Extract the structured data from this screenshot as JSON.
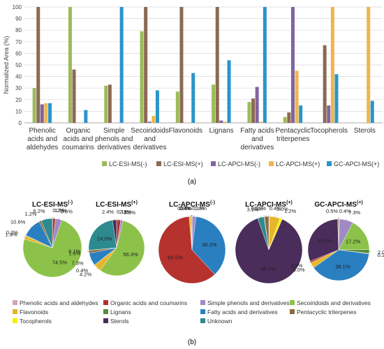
{
  "colors": {
    "LC-ESI-MS(-)": "#9bbb59",
    "LC-ESI-MS(+)": "#8b6a52",
    "LC-APCI-MS(-)": "#8064a2",
    "LC-APCI-MS(+)": "#f0b64b",
    "GC-APCI-MS(+)": "#2a95c9",
    "Phenolic acids and aldehydes": "#d7a3b4",
    "Organic acids and coumarins": "#b5322e",
    "Simple phenols and derivatives": "#a08ac5",
    "Secoiridoids and derivatives": "#8cc249",
    "Flavonoids": "#e6b62a",
    "Lignans": "#5a8b3b",
    "Fatty acids and derivatives": "#2a7fc1",
    "Pentacyclic triterpenes": "#8c6b3c",
    "Tocopherols": "#f4f000",
    "Sterols": "#4a2d5a",
    "Unknown": "#2d8a8e"
  },
  "chart_data": [
    {
      "type": "bar",
      "panel_label": "(a)",
      "ylabel": "Normalized Area (%)",
      "ylim": [
        0,
        100
      ],
      "yticks": [
        0,
        10,
        20,
        30,
        40,
        50,
        60,
        70,
        80,
        90,
        100
      ],
      "grid": true,
      "legend_position": "bottom",
      "categories": [
        "Phenolic acids and aldehydes",
        "Organic acids and coumarins",
        "Simple phenols and derivatives",
        "Secoiridoids and derivatives",
        "Flavonoids",
        "Lignans",
        "Fatty acids and derivatives",
        "Pentacyclic triterpenes",
        "Tocopherols",
        "Sterols"
      ],
      "category_labels": [
        [
          "Phenolic",
          "acids and",
          "aldehydes"
        ],
        [
          "Organic",
          "acids and",
          "coumarins"
        ],
        [
          "Simple",
          "phenols and",
          "derivatives"
        ],
        [
          "Secoiridoids",
          "and",
          "derivatives"
        ],
        [
          "Flavonoids"
        ],
        [
          "Lignans"
        ],
        [
          "Fatty acids",
          "and",
          "derivatives"
        ],
        [
          "Pentacyclic",
          "triterpenes"
        ],
        [
          "Tocopherols"
        ],
        [
          "Sterols"
        ]
      ],
      "series": [
        {
          "name": "LC-ESI-MS(-)",
          "values": [
            30,
            100,
            32,
            79,
            27,
            33,
            18,
            5,
            0,
            0
          ]
        },
        {
          "name": "LC-ESI-MS(+)",
          "values": [
            100,
            46,
            33,
            100,
            100,
            100,
            21,
            9,
            67,
            0
          ]
        },
        {
          "name": "LC-APCI-MS(-)",
          "values": [
            16,
            0,
            0,
            1,
            0,
            2,
            31,
            100,
            15,
            0
          ]
        },
        {
          "name": "LC-APCI-MS(+)",
          "values": [
            17,
            0,
            0,
            6,
            0,
            1,
            1,
            45,
            100,
            100
          ]
        },
        {
          "name": "GC-APCI-MS(+)",
          "values": [
            17,
            11,
            100,
            28,
            43,
            54,
            100,
            15,
            42,
            19
          ]
        }
      ]
    },
    {
      "type": "pie",
      "panel_label": "(b)",
      "legend_position": "bottom",
      "categories": [
        "Phenolic acids and aldehydes",
        "Organic acids and coumarins",
        "Simple phenols and derivatives",
        "Secoiridoids and derivatives",
        "Flavonoids",
        "Lignans",
        "Fatty acids and derivatives",
        "Pentacyclic triterpenes",
        "Tocopherols",
        "Sterols",
        "Unknown"
      ],
      "pies": [
        {
          "title": "LC-ESI-MS",
          "superscript": "(-)",
          "slices": [
            {
              "category": "Phenolic acids and aldehydes",
              "value": 0.2,
              "label": "0.2%"
            },
            {
              "category": "Organic acids and coumarins",
              "value": 1.5,
              "label": "1.5%"
            },
            {
              "category": "Simple phenols and derivatives",
              "value": 3.6,
              "label": "3.6%"
            },
            {
              "category": "Secoiridoids and derivatives",
              "value": 74.5,
              "label": "74.5%"
            },
            {
              "category": "Flavonoids",
              "value": 1.9,
              "label": "1.9%"
            },
            {
              "category": "Lignans",
              "value": 0.2,
              "label": "0.2%"
            },
            {
              "category": "Fatty acids and derivatives",
              "value": 10.6,
              "label": "10.6%"
            },
            {
              "category": "Pentacyclic triterpenes",
              "value": 1.2,
              "label": "1.2%"
            },
            {
              "category": "Unknown",
              "value": 6.2,
              "label": "6.2%"
            }
          ]
        },
        {
          "title": "LC-ESI-MS",
          "superscript": "(+)",
          "slices": [
            {
              "category": "Phenolic acids and aldehydes",
              "value": 0.1,
              "label": "0.1%"
            },
            {
              "category": "Organic acids and coumarins",
              "value": 2.3,
              "label": "2.3%"
            },
            {
              "category": "Simple phenols and derivatives",
              "value": 1.3,
              "label": "1.3%"
            },
            {
              "category": "Secoiridoids and derivatives",
              "value": 56.3,
              "label": "56.3%"
            },
            {
              "category": "Flavonoids",
              "value": 4.2,
              "label": "4.2%"
            },
            {
              "category": "Lignans",
              "value": 0.4,
              "label": "0.4%"
            },
            {
              "category": "Fatty acids and derivatives",
              "value": 7.3,
              "label": "7.3%"
            },
            {
              "category": "Pentacyclic triterpenes",
              "value": 1.6,
              "label": "1.6%"
            },
            {
              "category": "Tocopherols",
              "value": 0.1,
              "label": "0.1%"
            },
            {
              "category": "Unknown",
              "value": 24.0,
              "label": "24.0%"
            },
            {
              "category": "Sterols",
              "value": 2.4,
              "label": "2.4%"
            }
          ]
        },
        {
          "title": "LC-APCI-MS",
          "superscript": "(-)",
          "slices": [
            {
              "category": "Phenolic acids and aldehydes",
              "value": 0.1,
              "label": "0.1%"
            },
            {
              "category": "Simple phenols and derivatives",
              "value": 1.8,
              "label": "1.8%"
            },
            {
              "category": "Fatty acids and derivatives",
              "value": 36.2,
              "label": "36.2%"
            },
            {
              "category": "Organic acids and coumarins",
              "value": 60.5,
              "label": "60.5%"
            },
            {
              "category": "Flavonoids",
              "value": 0.9,
              "label": "0.9%"
            },
            {
              "category": "Lignans",
              "value": 0.4,
              "label": "0.4%"
            },
            {
              "category": "Tocopherols",
              "value": 0.1,
              "label": "0.1%"
            }
          ]
        },
        {
          "title": "LC-APCI-MS",
          "superscript": "(+)",
          "slices": [
            {
              "category": "Phenolic acids and aldehydes",
              "value": 0.4,
              "label": "0.4%"
            },
            {
              "category": "Flavonoids",
              "value": 5.0,
              "label": "5.0%"
            },
            {
              "category": "Tocopherols",
              "value": 1.2,
              "label": "1.2%"
            },
            {
              "category": "Sterols",
              "value": 88.1,
              "label": "88.1%"
            },
            {
              "category": "Unknown",
              "value": 3.1,
              "label": "3.1%"
            },
            {
              "category": "Lignans",
              "value": 0.2,
              "label": "0.2%"
            },
            {
              "category": "Pentacyclic triterpenes",
              "value": 2.1,
              "label": "2.1%"
            }
          ]
        },
        {
          "title": "GC-APCI-MS",
          "superscript": "(+)",
          "slices": [
            {
              "category": "Phenolic acids and aldehydes",
              "value": 0.4,
              "label": "0.4%"
            },
            {
              "category": "Simple phenols and derivatives",
              "value": 7.3,
              "label": "7.3%"
            },
            {
              "category": "Secoiridoids and derivatives",
              "value": 17.2,
              "label": "17.2%"
            },
            {
              "category": "Lignans",
              "value": 2.0,
              "label": "2.0%"
            },
            {
              "category": "Tocopherols",
              "value": 0.2,
              "label": "0.2%"
            },
            {
              "category": "Fatty acids and derivatives",
              "value": 38.1,
              "label": "38.1%"
            },
            {
              "category": "Flavonoids",
              "value": 3.0,
              "label": "3.0%"
            },
            {
              "category": "Organic acids and coumarins",
              "value": 0.9,
              "label": "0.9%"
            },
            {
              "category": "Sterols",
              "value": 30.5,
              "label": "30.5%"
            },
            {
              "category": "Pentacyclic triterpenes",
              "value": 0.5,
              "label": "0.5%"
            }
          ]
        }
      ]
    }
  ]
}
